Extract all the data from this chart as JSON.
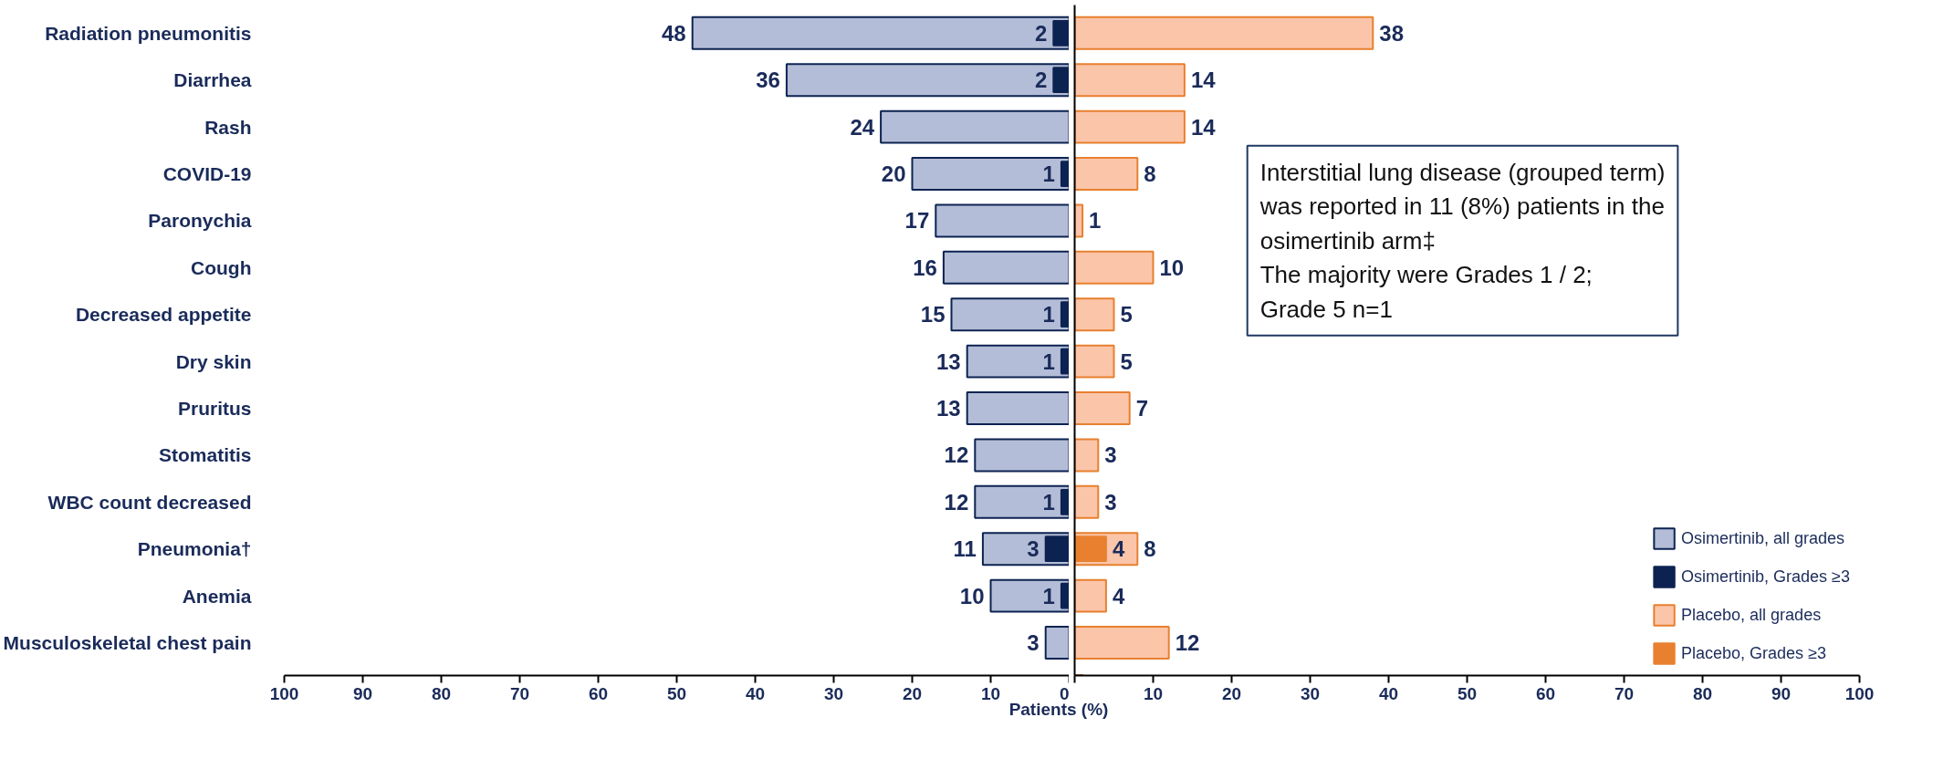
{
  "chart_data": [
    {
      "type": "bar",
      "orientation": "horizontal",
      "categories": [
        "Radiation pneumonitis",
        "Diarrhea",
        "Rash",
        "COVID-19",
        "Paronychia",
        "Cough",
        "Decreased appetite",
        "Dry skin",
        "Pruritus",
        "Stomatitis",
        "WBC count decreased",
        "Pneumonia†",
        "Anemia",
        "Musculoskeletal chest pain"
      ],
      "series": [
        {
          "name": "Osimertinib, all grades",
          "color": "#b4bdd7",
          "values": [
            48,
            36,
            24,
            20,
            17,
            16,
            15,
            13,
            13,
            12,
            12,
            11,
            10,
            3
          ]
        },
        {
          "name": "Osimertinib, Grades ≥3",
          "color": "#0c2352",
          "values": [
            2,
            2,
            null,
            1,
            null,
            null,
            1,
            1,
            null,
            null,
            1,
            3,
            1,
            null
          ]
        }
      ],
      "data_labels": true,
      "xlabel": "Patients (%)",
      "xlim": [
        100,
        0
      ],
      "xticks": [
        100,
        90,
        80,
        70,
        60,
        50,
        40,
        30,
        20,
        10,
        0
      ],
      "legend": "bottom right",
      "grid": false
    },
    {
      "type": "bar",
      "orientation": "horizontal",
      "categories": [
        null,
        null,
        null,
        null,
        null,
        null,
        null,
        null,
        null,
        null,
        null,
        null,
        null,
        null
      ],
      "tick_labels": "x",
      "series": [
        {
          "name": "Placebo, all grades",
          "color": "#fbc5aa",
          "values": [
            38,
            14,
            14,
            8,
            1,
            10,
            5,
            5,
            7,
            3,
            3,
            8,
            4,
            12
          ]
        },
        {
          "name": "Placebo, Grades ≥3",
          "color": "#e8802f",
          "values": [
            null,
            null,
            null,
            null,
            null,
            null,
            null,
            null,
            null,
            null,
            null,
            4,
            null,
            null
          ]
        }
      ],
      "data_labels": true,
      "xlim": [
        0,
        100
      ],
      "xticks": [
        {
          "value": 0,
          "label": null
        },
        10,
        20,
        30,
        40,
        50,
        60,
        70,
        80,
        90,
        100
      ],
      "annotations": [
        "Interstitial lung disease (grouped term)\nwas reported in 11 (8%) patients in the\nosimertinib arm‡\nThe majority were Grades 1 / 2;\nGrade 5 n=1"
      ],
      "legend": "bottom right",
      "grid": false
    }
  ]
}
